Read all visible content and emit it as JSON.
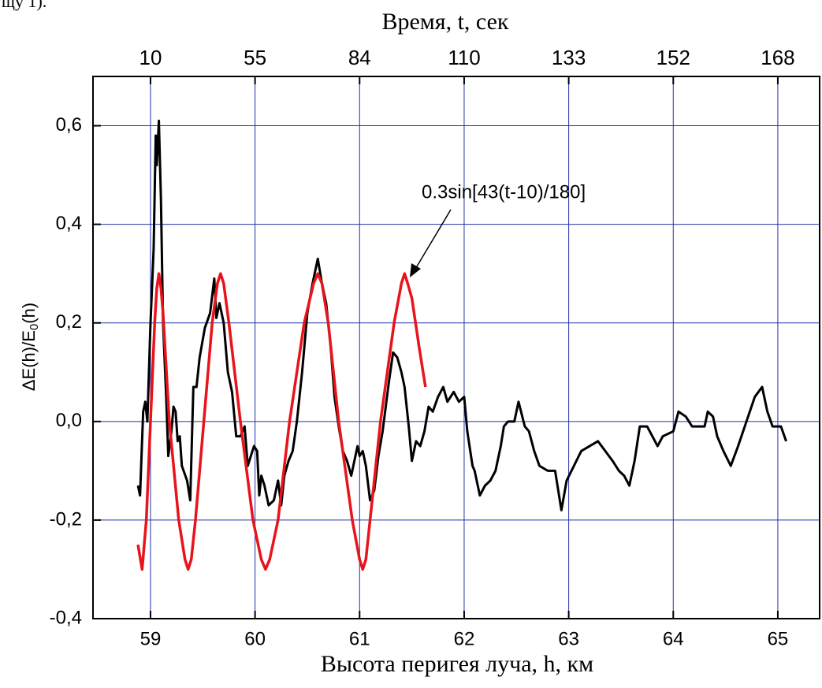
{
  "header_fragment": "щу 1).",
  "chart_data": {
    "type": "line",
    "title": "Время, t, сек",
    "xlabel": "Высота перигея луча, h, км",
    "ylabel": {
      "main": "ΔE(h)/E",
      "sub": "0",
      "tail": "(h)"
    },
    "annotation": "0.3sin[43(t-10)/180]",
    "grid": true,
    "grid_color": "#2233aa",
    "xlim": [
      58.45,
      65.4
    ],
    "ylim": [
      -0.4,
      0.7
    ],
    "xticks": [
      59,
      60,
      61,
      62,
      63,
      64,
      65
    ],
    "x2ticks": [
      {
        "value": 59,
        "label": "10"
      },
      {
        "value": 60,
        "label": "55"
      },
      {
        "value": 61,
        "label": "84"
      },
      {
        "value": 62,
        "label": "110"
      },
      {
        "value": 63,
        "label": "133"
      },
      {
        "value": 64,
        "label": "152"
      },
      {
        "value": 65,
        "label": "168"
      }
    ],
    "yticks": [
      {
        "value": -0.4,
        "label": "-0,4"
      },
      {
        "value": -0.2,
        "label": "-0,2"
      },
      {
        "value": 0,
        "label": "0,0"
      },
      {
        "value": 0.2,
        "label": "0,2"
      },
      {
        "value": 0.4,
        "label": "0,4"
      },
      {
        "value": 0.6,
        "label": "0,6"
      }
    ],
    "series": [
      {
        "color": "#000000",
        "x": [
          58.88,
          58.9,
          58.93,
          58.95,
          58.97,
          59.0,
          59.03,
          59.05,
          59.06,
          59.08,
          59.1,
          59.12,
          59.15,
          59.17,
          59.2,
          59.22,
          59.24,
          59.26,
          59.28,
          59.3,
          59.35,
          59.38,
          59.41,
          59.44,
          59.47,
          59.52,
          59.57,
          59.61,
          59.63,
          59.66,
          59.7,
          59.74,
          59.78,
          59.82,
          59.86,
          59.9,
          59.93,
          59.96,
          59.99,
          60.02,
          60.04,
          60.06,
          60.09,
          60.13,
          60.18,
          60.22,
          60.25,
          60.28,
          60.32,
          60.36,
          60.4,
          60.45,
          60.5,
          60.55,
          60.6,
          60.64,
          60.68,
          60.72,
          60.76,
          60.8,
          60.84,
          60.88,
          60.92,
          60.95,
          60.98,
          61.0,
          61.03,
          61.06,
          61.1,
          61.14,
          61.18,
          61.22,
          61.28,
          61.32,
          61.36,
          61.4,
          61.43,
          61.47,
          61.5,
          61.54,
          61.58,
          61.62,
          61.66,
          61.7,
          61.75,
          61.8,
          61.84,
          61.9,
          61.95,
          62.0,
          62.03,
          62.08,
          62.1,
          62.15,
          62.2,
          62.25,
          62.3,
          62.35,
          62.38,
          62.42,
          62.48,
          62.52,
          62.58,
          62.62,
          62.67,
          62.72,
          62.8,
          62.87,
          62.93,
          62.98,
          63.05,
          63.12,
          63.2,
          63.28,
          63.35,
          63.42,
          63.48,
          63.53,
          63.58,
          63.63,
          63.68,
          63.75,
          63.8,
          63.85,
          63.9,
          64.0,
          64.05,
          64.12,
          64.18,
          64.25,
          64.3,
          64.33,
          64.38,
          64.42,
          64.48,
          64.55,
          64.62,
          64.7,
          64.78,
          64.85,
          64.9,
          64.95,
          65.0,
          65.03,
          65.08
        ],
        "values": [
          -0.13,
          -0.15,
          0.02,
          0.04,
          0.0,
          0.2,
          0.35,
          0.58,
          0.52,
          0.61,
          0.45,
          0.2,
          0.05,
          -0.07,
          -0.02,
          0.03,
          0.02,
          -0.04,
          -0.03,
          -0.09,
          -0.12,
          -0.16,
          0.07,
          0.07,
          0.13,
          0.19,
          0.22,
          0.29,
          0.21,
          0.24,
          0.2,
          0.1,
          0.06,
          -0.03,
          -0.03,
          -0.01,
          -0.09,
          -0.07,
          -0.05,
          -0.06,
          -0.15,
          -0.11,
          -0.13,
          -0.17,
          -0.16,
          -0.12,
          -0.17,
          -0.11,
          -0.08,
          -0.06,
          0.0,
          0.1,
          0.22,
          0.28,
          0.33,
          0.28,
          0.24,
          0.16,
          0.05,
          -0.01,
          -0.06,
          -0.08,
          -0.11,
          -0.08,
          -0.05,
          -0.07,
          -0.06,
          -0.09,
          -0.16,
          -0.14,
          -0.07,
          -0.02,
          0.08,
          0.14,
          0.13,
          0.1,
          0.07,
          -0.01,
          -0.08,
          -0.04,
          -0.05,
          -0.02,
          0.03,
          0.02,
          0.05,
          0.07,
          0.04,
          0.06,
          0.04,
          0.05,
          -0.02,
          -0.09,
          -0.1,
          -0.15,
          -0.13,
          -0.12,
          -0.1,
          -0.05,
          -0.01,
          0.0,
          0.0,
          0.04,
          -0.01,
          -0.02,
          -0.06,
          -0.09,
          -0.1,
          -0.1,
          -0.18,
          -0.12,
          -0.09,
          -0.06,
          -0.05,
          -0.04,
          -0.06,
          -0.08,
          -0.1,
          -0.11,
          -0.13,
          -0.08,
          -0.01,
          -0.01,
          -0.03,
          -0.05,
          -0.03,
          -0.02,
          0.02,
          0.01,
          -0.01,
          -0.01,
          -0.01,
          0.02,
          0.01,
          -0.03,
          -0.06,
          -0.09,
          -0.05,
          0.0,
          0.05,
          0.07,
          0.02,
          -0.01,
          -0.01,
          -0.01,
          -0.04
        ]
      },
      {
        "color": "#e8141c",
        "x": [
          58.88,
          58.92,
          58.96,
          59.0,
          59.04,
          59.06,
          59.08,
          59.1,
          59.12,
          59.18,
          59.27,
          59.33,
          59.36,
          59.39,
          59.43,
          59.51,
          59.59,
          59.64,
          59.67,
          59.7,
          59.75,
          59.86,
          59.98,
          60.06,
          60.1,
          60.14,
          60.22,
          60.33,
          60.47,
          60.56,
          60.6,
          60.64,
          60.7,
          60.8,
          60.93,
          61.0,
          61.03,
          61.06,
          61.1,
          61.2,
          61.33,
          61.4,
          61.43,
          61.46,
          61.5,
          61.57,
          61.63
        ],
        "values": [
          -0.25,
          -0.3,
          -0.2,
          0.0,
          0.2,
          0.27,
          0.3,
          0.27,
          0.22,
          0.0,
          -0.2,
          -0.28,
          -0.3,
          -0.28,
          -0.2,
          0.0,
          0.2,
          0.28,
          0.3,
          0.28,
          0.2,
          0.0,
          -0.2,
          -0.28,
          -0.3,
          -0.28,
          -0.2,
          0.0,
          0.2,
          0.28,
          0.3,
          0.28,
          0.2,
          0.0,
          -0.2,
          -0.28,
          -0.3,
          -0.28,
          -0.2,
          0.0,
          0.2,
          0.28,
          0.3,
          0.28,
          0.25,
          0.15,
          0.07
        ]
      }
    ]
  }
}
